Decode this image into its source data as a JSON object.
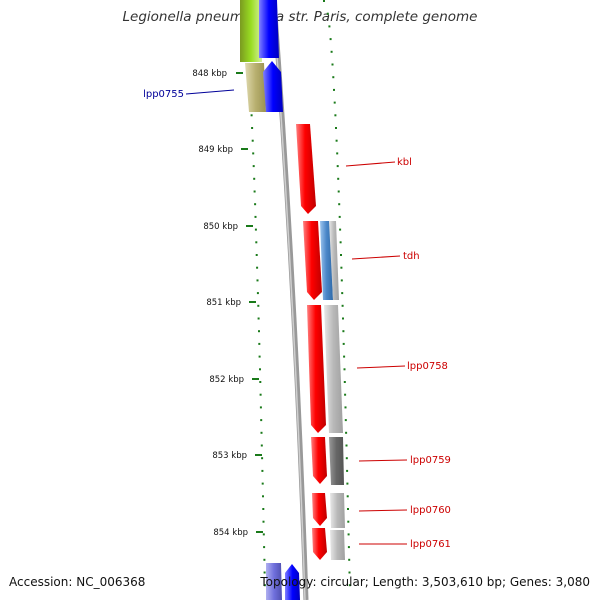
{
  "title": "Legionella pneumophila str. Paris, complete genome",
  "footer": {
    "accession": "Accession: NC_006368",
    "topology": "Topology: circular; Length: 3,503,610 bp; Genes: 3,080"
  },
  "ruler": {
    "ticks": [
      "848 kbp",
      "849 kbp",
      "850 kbp",
      "851 kbp",
      "852 kbp",
      "853 kbp",
      "854 kbp"
    ]
  },
  "gene_labels": [
    {
      "name": "lpp0755",
      "strand": "forward"
    },
    {
      "name": "kbl",
      "strand": "reverse"
    },
    {
      "name": "tdh",
      "strand": "reverse"
    },
    {
      "name": "lpp0758",
      "strand": "reverse"
    },
    {
      "name": "lpp0759",
      "strand": "reverse"
    },
    {
      "name": "lpp0760",
      "strand": "reverse"
    },
    {
      "name": "lpp0761",
      "strand": "reverse"
    }
  ],
  "colors": {
    "forward_gene": "#0000ff",
    "reverse_gene": "#ff0000",
    "forward_label": "#000099",
    "reverse_label": "#cc0000",
    "tick": "#1a7a1a",
    "backbone": "#888888",
    "cog_olive": "#b8b070",
    "cog_lime": "#99dd22",
    "cog_steelblue": "#4a86c8",
    "cog_gray": "#b8b8b8",
    "cog_darkgray": "#666666",
    "cog_lavender": "#7070dd"
  }
}
